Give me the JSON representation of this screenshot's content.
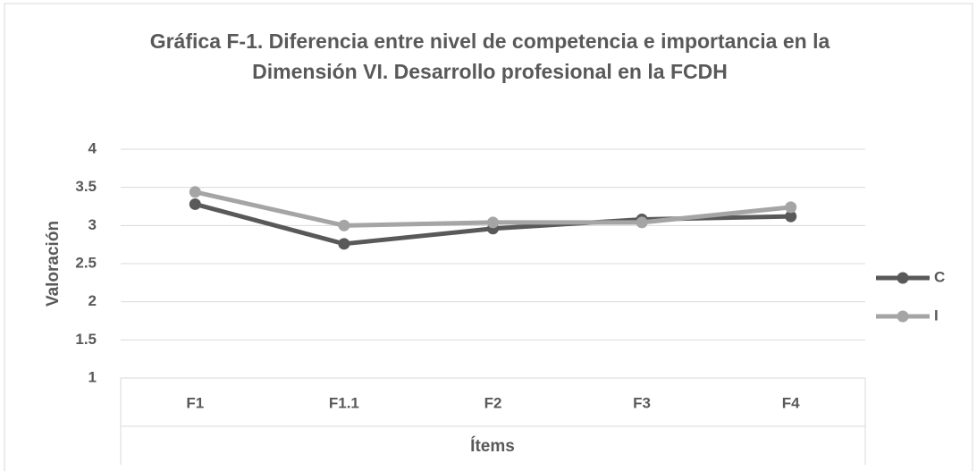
{
  "chart_data": {
    "type": "line",
    "title": [
      "Gráfica F-1. Diferencia entre nivel de competencia e importancia  en la",
      "Dimensión VI. Desarrollo profesional en la FCDH"
    ],
    "x_label": "Ítems",
    "y_label": "Valoración",
    "categories": [
      "F1",
      "F1.1",
      "F2",
      "F3",
      "F4"
    ],
    "series": [
      {
        "name": "C",
        "color": "#595959",
        "values": [
          3.28,
          2.76,
          2.96,
          3.08,
          3.12
        ]
      },
      {
        "name": "I",
        "color": "#a5a5a5",
        "values": [
          3.44,
          3.0,
          3.04,
          3.04,
          3.24
        ]
      }
    ],
    "ylim": [
      1,
      4
    ],
    "yticks": [
      1,
      1.5,
      2,
      2.5,
      3,
      3.5,
      4
    ],
    "grid": true,
    "legend": "right"
  }
}
